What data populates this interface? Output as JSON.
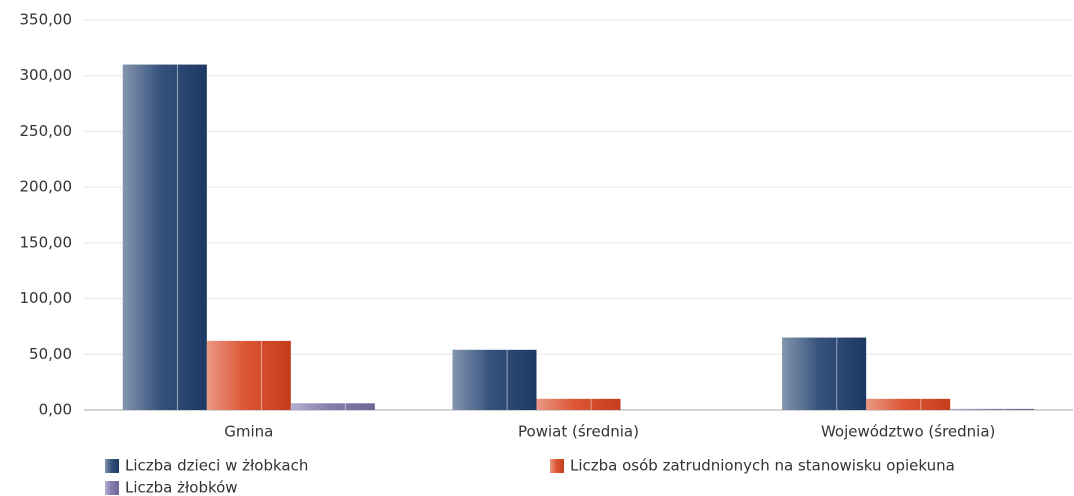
{
  "chart_data": {
    "type": "bar",
    "categories": [
      "Gmina",
      "Powiat (średnia)",
      "Województwo (średnia)"
    ],
    "series": [
      {
        "name": "Liczba dzieci w żłobkach",
        "color": "#1f3f6e",
        "values": [
          310,
          54,
          65
        ]
      },
      {
        "name": "Liczba osób zatrudnionych na stanowisku opiekuna",
        "color": "#d9441f",
        "values": [
          62,
          10,
          10
        ]
      },
      {
        "name": "Liczba żłobków",
        "color": "#7b6fa6",
        "values": [
          6,
          0,
          1
        ]
      }
    ],
    "ylim": [
      0,
      350
    ],
    "yticks": [
      {
        "value": 0,
        "label": "0,00"
      },
      {
        "value": 50,
        "label": "50,00"
      },
      {
        "value": 100,
        "label": "100,00"
      },
      {
        "value": 150,
        "label": "150,00"
      },
      {
        "value": 200,
        "label": "200,00"
      },
      {
        "value": 250,
        "label": "250,00"
      },
      {
        "value": 300,
        "label": "300,00"
      },
      {
        "value": 350,
        "label": "350,00"
      }
    ],
    "grid": true
  }
}
